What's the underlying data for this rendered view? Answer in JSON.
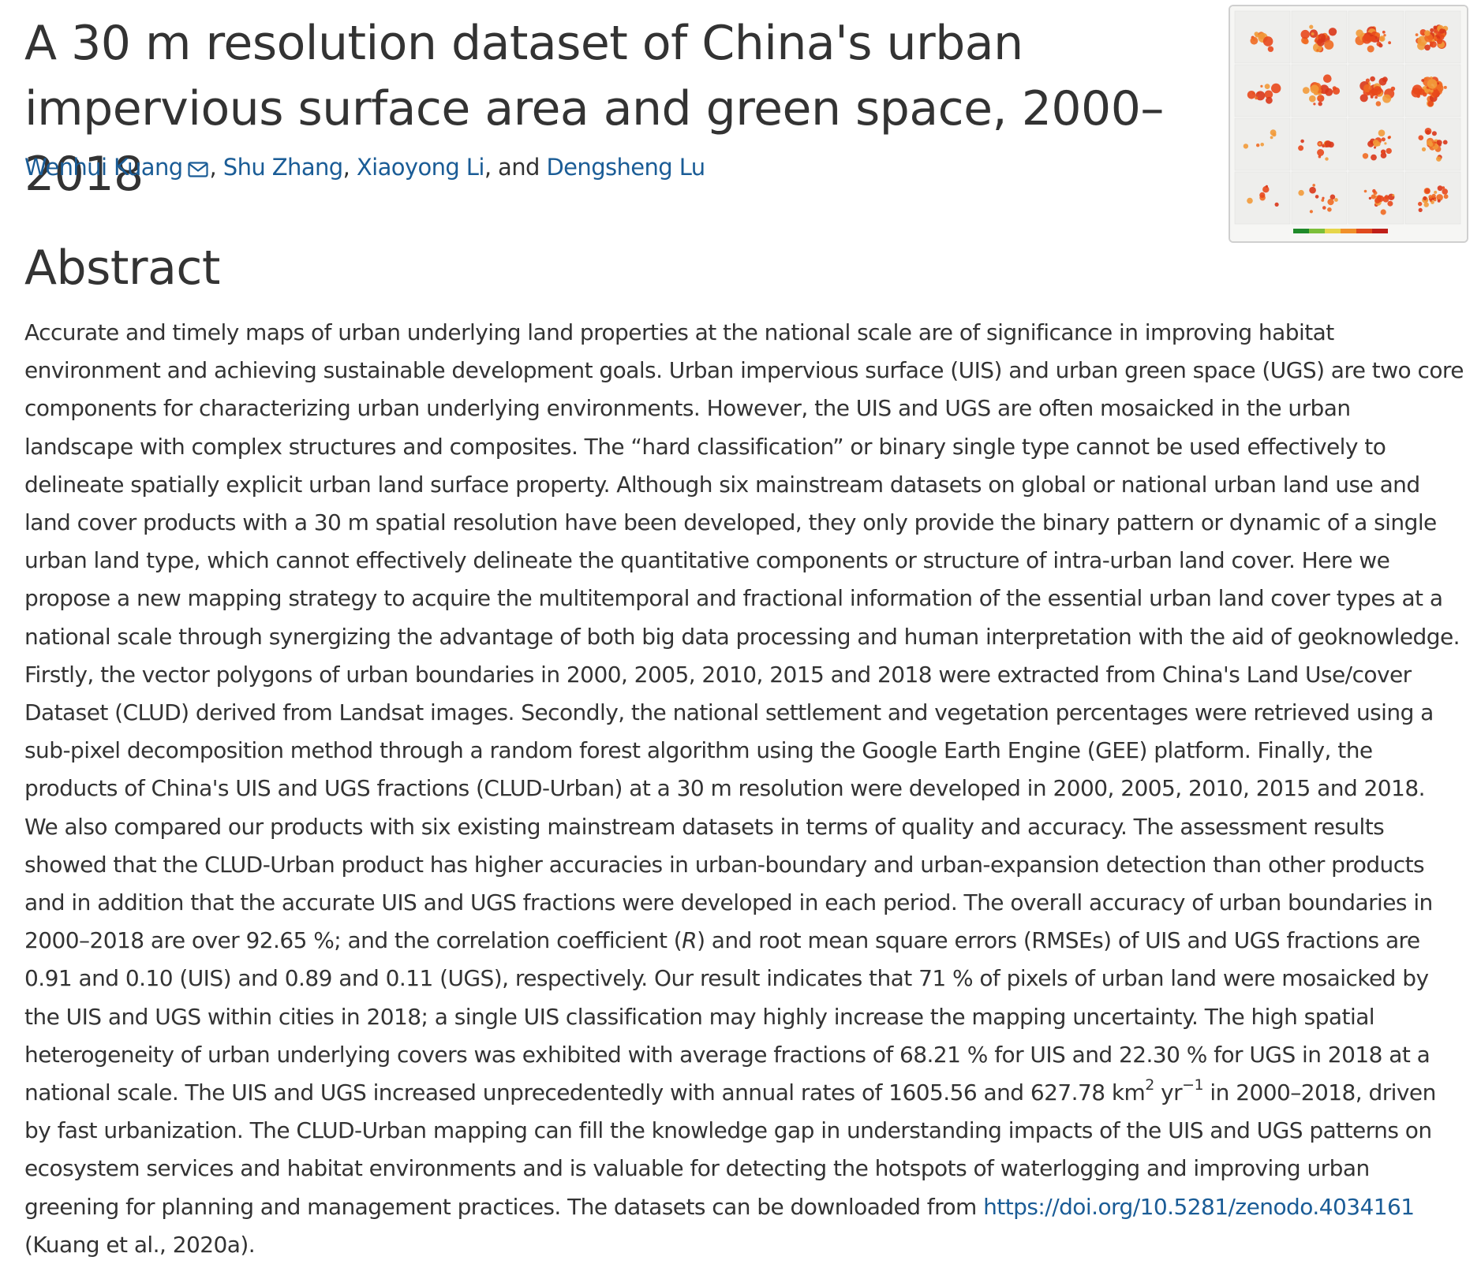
{
  "title": "A 30 m resolution dataset of China's urban impervious surface area and green space, 2000–2018",
  "authors": [
    "Wenhui Kuang",
    "Shu Zhang",
    "Xiaoyong Li",
    "Dengsheng Lu"
  ],
  "author_separators": [
    ", ",
    ", ",
    ", and "
  ],
  "abstract_heading": "Abstract",
  "abstract": {
    "p1": "Accurate and timely maps of urban underlying land properties at the national scale are of significance in improving habitat environment and achieving sustainable development goals. Urban impervious surface (UIS) and urban green space (UGS) are two core components for characterizing urban underlying environments. However, the UIS and UGS are often mosaicked in the urban landscape with complex structures and composites. The “hard classification” or binary single type cannot be used effectively to delineate spatially explicit urban land surface property. Although six mainstream datasets on global or national urban land use and land cover products with a 30 m spatial resolution have been developed, they only provide the binary pattern or dynamic of a single urban land type, which cannot effectively delineate the quantitative components or structure of intra-urban land cover. Here we propose a new mapping strategy to acquire the multitemporal and fractional information of the essential urban land cover types at a national scale through synergizing the advantage of both big data processing and human interpretation with the aid of geoknowledge. Firstly, the vector polygons of urban boundaries in 2000, 2005, 2010, 2015 and 2018 were extracted from China's Land Use/cover Dataset (CLUD) derived from Landsat images. Secondly, the national settlement and vegetation percentages were retrieved using a sub-pixel decomposition method through a random forest algorithm using the Google Earth Engine (GEE) platform. Finally, the products of China's UIS and UGS fractions (CLUD-Urban) at a 30 m resolution were developed in 2000, 2005, 2010, 2015 and 2018. We also compared our products with six existing mainstream datasets in terms of quality and accuracy. The assessment results showed that the CLUD-Urban product has higher accuracies in urban-boundary and urban-expansion detection than other products and in addition that the accurate UIS and UGS fractions were developed in each period. The overall accuracy of urban boundaries in 2000–2018 are over 92.65 %; and the correlation coefficient (",
    "r_symbol": "R",
    "p2": ") and root mean square errors (RMSEs) of UIS and UGS fractions are 0.91 and 0.10 (UIS) and 0.89 and 0.11 (UGS), respectively. Our result indicates that 71 % of pixels of urban land were mosaicked by the UIS and UGS within cities in 2018; a single UIS classification may highly increase the mapping uncertainty. The high spatial heterogeneity of urban underlying covers was exhibited with average fractions of 68.21 % for UIS and 22.30 % for UGS in 2018 at a national scale. The UIS and UGS increased unprecedentedly with annual rates of 1605.56 and 627.78 km",
    "sup1": "2",
    "p3": " yr",
    "sup2": "−1",
    "p4": " in 2000–2018, driven by fast urbanization. The CLUD-Urban mapping can fill the knowledge gap in understanding impacts of the UIS and UGS patterns on ecosystem services and habitat environments and is valuable for detecting the hotspots of waterlogging and improving urban greening for planning and management practices. The datasets can be downloaded from ",
    "link": "https://doi.org/10.5281/zenodo.4034161",
    "p5": " (Kuang et al., 2020a)."
  },
  "colors": {
    "text": "#333333",
    "link": "#1a5c96",
    "thumb_border": "#cfcfcf"
  },
  "icons": {
    "author_contact": "mail-icon"
  }
}
